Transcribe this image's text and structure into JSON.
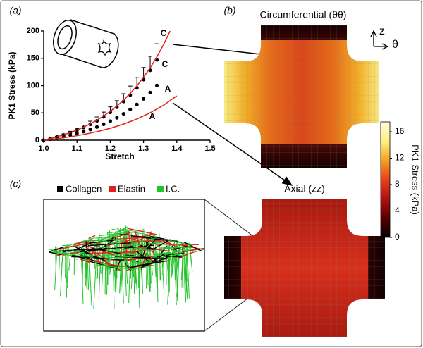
{
  "panel_labels": [
    "(a)",
    "(b)",
    "(c)"
  ],
  "heatmap_titles": [
    "Circumferential (θθ)",
    "Axial (zz)"
  ],
  "direction_labels": [
    "z",
    "θ"
  ],
  "network_legend": [
    {
      "name": "Collagen",
      "color": "#000000"
    },
    {
      "name": "Elastin",
      "color": "#e0201b"
    },
    {
      "name": "I.C.",
      "color": "#22c42a"
    }
  ],
  "chart_data": [
    {
      "type": "line",
      "xlabel": "Stretch",
      "ylabel": "PK1 Stress (kPa)",
      "xlim": [
        1,
        1.5
      ],
      "ylim": [
        0,
        200
      ],
      "xticks": [
        {
          "value": 1,
          "label": "1.0"
        },
        1.1,
        1.2,
        1.3,
        1.4,
        1.5
      ],
      "yticks": [
        0,
        50,
        100,
        150,
        200
      ],
      "annotations": [
        "C",
        "C",
        "A",
        "A"
      ],
      "series": [
        {
          "color": "#000000",
          "marker": true,
          "x": [
            1,
            1.02,
            1.04,
            1.06,
            1.08,
            1.1,
            1.12,
            1.14,
            1.16,
            1.18,
            1.2,
            1.22,
            1.24,
            1.26,
            1.28,
            1.3,
            1.32,
            1.34
          ],
          "values": [
            0,
            2.8,
            6,
            9.5,
            13.6,
            18.1,
            23.2,
            29,
            35.5,
            42.8,
            51,
            60.4,
            70.9,
            82.7,
            96,
            111.1,
            128.1,
            147.2
          ],
          "errors": [
            0,
            0.6,
            1.2,
            1.9,
            2.7,
            3.6,
            4.6,
            5.8,
            7.1,
            8.6,
            10.2,
            12.1,
            14.2,
            16.5,
            19.2,
            22.2,
            25.6,
            29.4
          ]
        },
        {
          "color": "#000000",
          "marker": true,
          "x": [
            1,
            1.02,
            1.04,
            1.06,
            1.08,
            1.1,
            1.12,
            1.14,
            1.16,
            1.18,
            1.2,
            1.22,
            1.24,
            1.26,
            1.28,
            1.3,
            1.32,
            1.34
          ],
          "values": [
            0,
            1.9,
            4.1,
            6.5,
            9.2,
            12.3,
            15.8,
            19.7,
            24.2,
            29.2,
            34.8,
            41.1,
            48.3,
            56.4,
            65.5,
            75.7,
            87.3,
            100.4
          ]
        },
        {
          "color": "#e0201b",
          "marker": false,
          "x": [
            1,
            1.02,
            1.04,
            1.06,
            1.08,
            1.1,
            1.12,
            1.14,
            1.16,
            1.18,
            1.2,
            1.22,
            1.24,
            1.26,
            1.28,
            1.3,
            1.32,
            1.34,
            1.36,
            1.38
          ],
          "values": [
            0,
            2.9,
            6.2,
            9.9,
            14,
            18.7,
            24,
            30,
            36.7,
            44.3,
            52.9,
            62.5,
            73.4,
            85.7,
            99.5,
            115.1,
            132.7,
            152.5,
            174.9,
            200
          ]
        },
        {
          "color": "#e0201b",
          "marker": false,
          "x": [
            1,
            1.04,
            1.08,
            1.12,
            1.16,
            1.2,
            1.24,
            1.28,
            1.32,
            1.36,
            1.4
          ],
          "values": [
            0,
            2.8,
            6.2,
            10.4,
            15.6,
            21.8,
            29.5,
            38.8,
            50.2,
            64.1,
            81.1
          ]
        }
      ]
    },
    {
      "type": "colorbar",
      "ylabel": "PK1 Stress (kPa)",
      "ylim": [
        0,
        17.5
      ],
      "yticks": [
        0,
        4,
        8,
        12,
        16
      ],
      "colors": [
        "#000000",
        "#5a0000",
        "#b01010",
        "#e8401a",
        "#f5a020",
        "#fff080",
        "#fffbe0"
      ]
    }
  ]
}
